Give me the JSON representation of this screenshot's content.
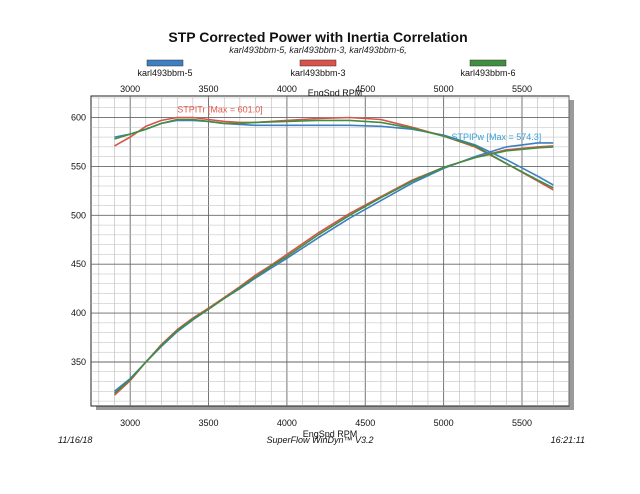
{
  "chart_data": {
    "type": "line",
    "title": "STP Corrected Power with Inertia Correlation",
    "subtitle": "karl493bbm-5, karl493bbm-3, karl493bbm-6,",
    "xlabel_top": "EngSpd RPM",
    "xlabel_bottom": "EngSpd RPM",
    "xlim": [
      2750,
      5800
    ],
    "ylim": [
      305,
      622
    ],
    "x_ticks": [
      3000,
      3500,
      4000,
      4500,
      5000,
      5500
    ],
    "x_tick_labels": [
      "3000",
      "3500",
      "4000",
      "4500",
      "5000",
      "5500"
    ],
    "y_ticks": [
      350,
      400,
      450,
      500,
      550,
      600
    ],
    "y_tick_labels": [
      "350",
      "400",
      "450",
      "500",
      "550",
      "600"
    ],
    "grid": true,
    "legend": [
      {
        "name": "karl493bbm-5",
        "color": "#3d7fc1"
      },
      {
        "name": "karl493bbm-3",
        "color": "#d9534a"
      },
      {
        "name": "karl493bbm-6",
        "color": "#3f8f3f"
      }
    ],
    "annotations": [
      {
        "text": "STPITr [Max = 601.0]",
        "color": "#e05a4e",
        "x": 3300,
        "y": 601
      },
      {
        "text": "STPIPw [Max = 574.3]",
        "color": "#3aa0d8",
        "x": 5050,
        "y": 573
      }
    ],
    "series": [
      {
        "name": "karl493bbm-5",
        "metric": "torque",
        "color": "#3d7fc1",
        "x": [
          2900,
          3000,
          3100,
          3200,
          3300,
          3400,
          3500,
          3600,
          3700,
          3800,
          4000,
          4200,
          4400,
          4600,
          4800,
          5000,
          5200,
          5400,
          5600,
          5700
        ],
        "y": [
          580,
          583,
          588,
          594,
          597,
          597,
          596,
          594,
          593,
          592,
          592,
          592,
          592,
          591,
          588,
          582,
          572,
          557,
          540,
          531
        ]
      },
      {
        "name": "karl493bbm-3",
        "metric": "torque",
        "color": "#d9534a",
        "x": [
          2900,
          3000,
          3100,
          3200,
          3300,
          3400,
          3500,
          3600,
          3700,
          3800,
          4000,
          4200,
          4400,
          4600,
          4800,
          5000,
          5200,
          5400,
          5600,
          5700
        ],
        "y": [
          571,
          580,
          591,
          597,
          600,
          600,
          598,
          596,
          595,
          595,
          597,
          599,
          600,
          598,
          590,
          581,
          570,
          553,
          535,
          526
        ]
      },
      {
        "name": "karl493bbm-6",
        "metric": "torque",
        "color": "#3f8f3f",
        "x": [
          2900,
          3000,
          3100,
          3200,
          3300,
          3400,
          3500,
          3600,
          3700,
          3800,
          4000,
          4200,
          4400,
          4600,
          4800,
          5000,
          5200,
          5400,
          5600,
          5700
        ],
        "y": [
          578,
          583,
          588,
          594,
          598,
          598,
          596,
          594,
          594,
          595,
          596,
          597,
          597,
          595,
          589,
          581,
          571,
          553,
          536,
          528
        ]
      },
      {
        "name": "karl493bbm-5",
        "metric": "power",
        "color": "#3d7fc1",
        "x": [
          2900,
          3000,
          3100,
          3200,
          3300,
          3400,
          3500,
          3600,
          3700,
          3800,
          3900,
          4000,
          4200,
          4400,
          4600,
          4800,
          5000,
          5200,
          5400,
          5600,
          5700
        ],
        "y": [
          320,
          333,
          350,
          366,
          381,
          393,
          404,
          415,
          425,
          436,
          446,
          456,
          477,
          497,
          515,
          533,
          548,
          560,
          570,
          574,
          574
        ]
      },
      {
        "name": "karl493bbm-3",
        "metric": "power",
        "color": "#d9534a",
        "x": [
          2900,
          3000,
          3100,
          3200,
          3300,
          3400,
          3500,
          3600,
          3700,
          3800,
          3900,
          4000,
          4200,
          4400,
          4600,
          4800,
          5000,
          5200,
          5400,
          5600,
          5700
        ],
        "y": [
          316,
          331,
          350,
          368,
          383,
          395,
          405,
          416,
          427,
          439,
          449,
          460,
          482,
          502,
          519,
          536,
          549,
          559,
          567,
          570,
          571
        ]
      },
      {
        "name": "karl493bbm-6",
        "metric": "power",
        "color": "#3f8f3f",
        "x": [
          2900,
          3000,
          3100,
          3200,
          3300,
          3400,
          3500,
          3600,
          3700,
          3800,
          3900,
          4000,
          4200,
          4400,
          4600,
          4800,
          5000,
          5200,
          5400,
          5600,
          5700
        ],
        "y": [
          318,
          332,
          350,
          367,
          382,
          394,
          404,
          415,
          426,
          437,
          448,
          458,
          480,
          500,
          518,
          535,
          549,
          559,
          566,
          569,
          570
        ]
      }
    ]
  },
  "footer": {
    "date": "11/16/18",
    "software": "SuperFlow WinDyn™ V3.2",
    "time": "16:21:11"
  }
}
